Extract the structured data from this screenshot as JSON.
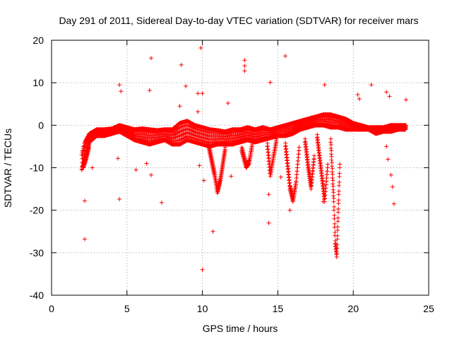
{
  "chart_data": {
    "type": "scatter",
    "title": "Day 291 of 2011, Sidereal Day-to-day VTEC variation (SDTVAR) for receiver mars",
    "xlabel": "GPS time / hours",
    "ylabel": "SDTVAR / TECUs",
    "xlim": [
      0,
      25
    ],
    "ylim": [
      -40,
      20
    ],
    "xticks": [
      0,
      5,
      10,
      15,
      20,
      25
    ],
    "yticks": [
      -40,
      -30,
      -20,
      -10,
      0,
      10,
      20
    ],
    "grid": true,
    "marker": "+",
    "color": "#ff0000",
    "band": {
      "description": "dense continuous band of measurements",
      "x": [
        2.0,
        2.2,
        2.5,
        3.0,
        3.5,
        4.0,
        4.5,
        5.0,
        5.5,
        6.0,
        6.5,
        7.0,
        7.5,
        8.0,
        8.5,
        9.0,
        9.5,
        10.0,
        10.5,
        11.0,
        11.5,
        12.0,
        12.5,
        13.0,
        13.5,
        14.0,
        14.5,
        15.0,
        15.5,
        16.0,
        16.5,
        17.0,
        17.5,
        18.0,
        18.5,
        19.0,
        19.5,
        20.0,
        20.5,
        21.0,
        21.5,
        22.0,
        22.5,
        23.0,
        23.5
      ],
      "upper": [
        -7.0,
        -4.0,
        -2.0,
        -1.0,
        -1.0,
        -0.8,
        0.0,
        -0.5,
        -1.0,
        -0.8,
        -1.0,
        -1.2,
        -1.0,
        -1.0,
        0.5,
        1.0,
        0.0,
        -0.5,
        -1.0,
        -1.2,
        -1.5,
        -1.0,
        -1.0,
        -0.5,
        -1.0,
        -0.5,
        -1.0,
        -0.5,
        0.0,
        0.5,
        1.0,
        1.5,
        2.0,
        2.5,
        2.5,
        2.0,
        1.5,
        0.5,
        0.0,
        -0.5,
        -0.5,
        -0.5,
        0.0,
        0.0,
        0.0
      ],
      "lower": [
        -10.5,
        -8.0,
        -4.0,
        -2.5,
        -2.5,
        -2.0,
        -1.5,
        -2.5,
        -3.5,
        -4.0,
        -4.5,
        -4.0,
        -3.5,
        -4.5,
        -4.5,
        -3.5,
        -4.0,
        -4.5,
        -5.0,
        -4.5,
        -4.5,
        -4.5,
        -4.0,
        -3.5,
        -4.0,
        -3.5,
        -3.0,
        -2.5,
        -2.5,
        -2.0,
        -1.0,
        -0.5,
        0.0,
        0.0,
        -0.5,
        -0.5,
        -1.0,
        -1.0,
        -1.0,
        -1.0,
        -2.0,
        -1.5,
        -1.5,
        -1.0,
        -1.0
      ]
    },
    "dips": [
      {
        "x": [
          10.4,
          10.8,
          11.0,
          11.2,
          11.5
        ],
        "y": [
          -5,
          -12,
          -16,
          -13,
          -6
        ]
      },
      {
        "x": [
          12.6,
          12.9,
          13.1,
          13.3
        ],
        "y": [
          -6,
          -10,
          -9,
          -5
        ]
      },
      {
        "x": [
          14.3,
          14.5,
          14.7,
          14.9
        ],
        "y": [
          -5,
          -12,
          -8,
          -4
        ]
      },
      {
        "x": [
          15.5,
          15.8,
          16.0,
          16.2,
          16.4
        ],
        "y": [
          -5,
          -15,
          -18,
          -14,
          -6
        ]
      },
      {
        "x": [
          16.8,
          17.0,
          17.2,
          17.4
        ],
        "y": [
          -4,
          -10,
          -15,
          -8
        ]
      },
      {
        "x": [
          17.6,
          17.9,
          18.1,
          18.3
        ],
        "y": [
          -3,
          -12,
          -18,
          -10
        ]
      },
      {
        "x": [
          18.5,
          18.7,
          18.8,
          18.9,
          19.1
        ],
        "y": [
          -4,
          -18,
          -28,
          -31,
          -10
        ]
      },
      {
        "x": [
          2.1,
          2.3,
          2.5
        ],
        "y": [
          -10,
          -8,
          -5
        ]
      }
    ],
    "outliers": [
      {
        "x": 9.9,
        "y": 18.2
      },
      {
        "x": 6.6,
        "y": 15.8
      },
      {
        "x": 15.5,
        "y": 16.3
      },
      {
        "x": 12.8,
        "y": 15.3
      },
      {
        "x": 12.8,
        "y": 14.0
      },
      {
        "x": 12.8,
        "y": 12.8
      },
      {
        "x": 8.6,
        "y": 14.2
      },
      {
        "x": 14.5,
        "y": 10.1
      },
      {
        "x": 4.5,
        "y": 9.5
      },
      {
        "x": 4.6,
        "y": 8.0
      },
      {
        "x": 8.9,
        "y": 9.2
      },
      {
        "x": 6.5,
        "y": 8.2
      },
      {
        "x": 10.0,
        "y": 7.5
      },
      {
        "x": 9.7,
        "y": 7.5
      },
      {
        "x": 18.1,
        "y": 9.5
      },
      {
        "x": 21.2,
        "y": 9.5
      },
      {
        "x": 22.2,
        "y": 7.8
      },
      {
        "x": 22.4,
        "y": 6.8
      },
      {
        "x": 23.5,
        "y": 6.0
      },
      {
        "x": 20.3,
        "y": 7.2
      },
      {
        "x": 20.4,
        "y": 6.2
      },
      {
        "x": 11.7,
        "y": 5.2
      },
      {
        "x": 9.7,
        "y": 3.2
      },
      {
        "x": 8.5,
        "y": 4.5
      },
      {
        "x": 4.4,
        "y": -7.8
      },
      {
        "x": 5.6,
        "y": -10.5
      },
      {
        "x": 6.3,
        "y": -9.0
      },
      {
        "x": 6.6,
        "y": -11.7
      },
      {
        "x": 2.7,
        "y": -10.0
      },
      {
        "x": 2.2,
        "y": -17.8
      },
      {
        "x": 4.5,
        "y": -17.4
      },
      {
        "x": 7.3,
        "y": -18.2
      },
      {
        "x": 2.2,
        "y": -26.8
      },
      {
        "x": 10.7,
        "y": -25.0
      },
      {
        "x": 10.0,
        "y": -34.0
      },
      {
        "x": 9.8,
        "y": -9.5
      },
      {
        "x": 14.4,
        "y": -16.3
      },
      {
        "x": 14.4,
        "y": -23.0
      },
      {
        "x": 15.2,
        "y": -12.2
      },
      {
        "x": 15.8,
        "y": -20.0
      },
      {
        "x": 18.0,
        "y": -18.0
      },
      {
        "x": 22.3,
        "y": -8.0
      },
      {
        "x": 22.5,
        "y": -11.7
      },
      {
        "x": 22.6,
        "y": -14.5
      },
      {
        "x": 22.7,
        "y": -18.5
      },
      {
        "x": 22.2,
        "y": -5.0
      },
      {
        "x": 10.1,
        "y": -13.0
      },
      {
        "x": 11.9,
        "y": -12.0
      }
    ]
  }
}
